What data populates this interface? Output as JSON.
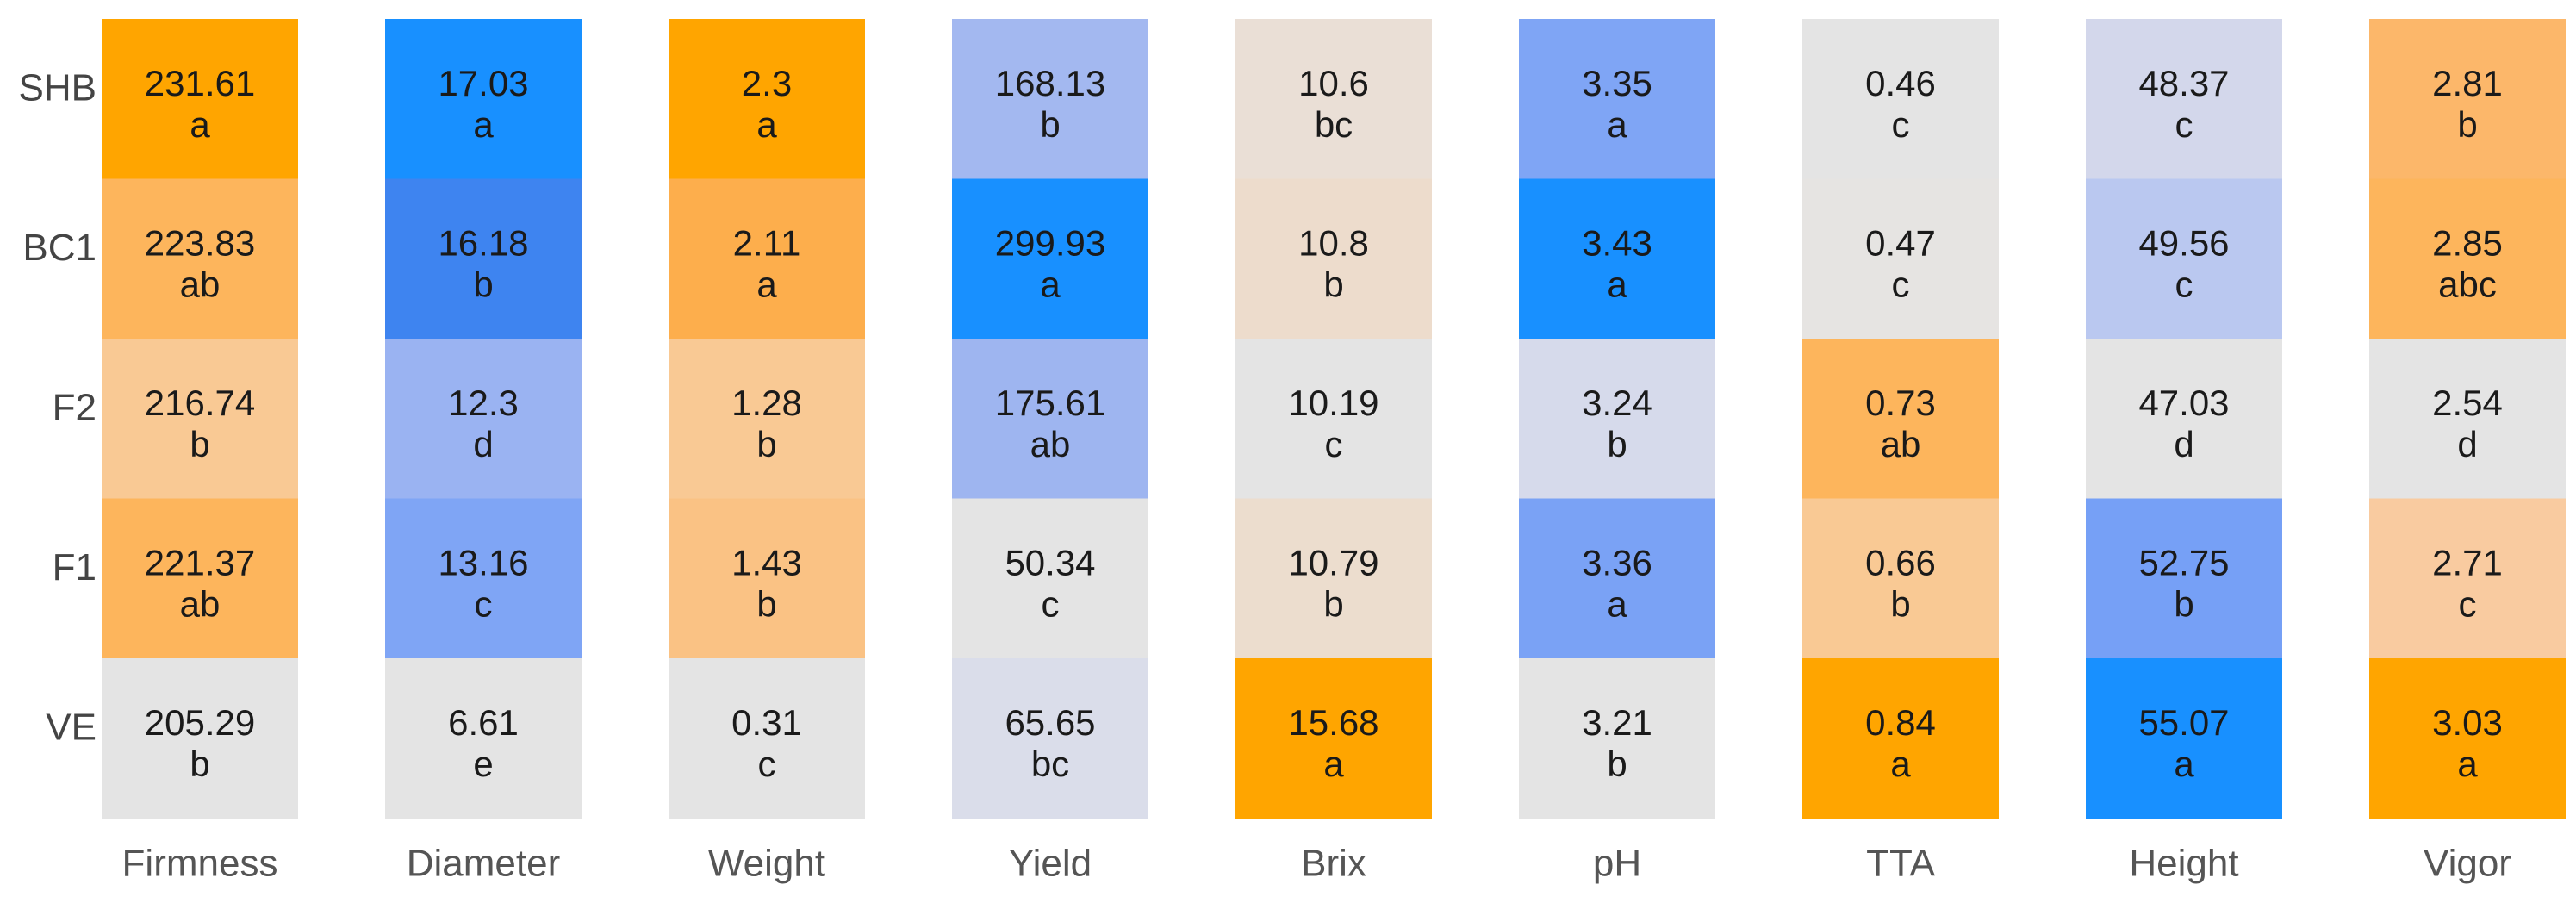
{
  "chart_data": {
    "type": "heatmap",
    "rows": [
      "SHB",
      "BC1",
      "F2",
      "F1",
      "VE"
    ],
    "columns": [
      {
        "name": "Firmness",
        "values": [
          231.61,
          223.83,
          216.74,
          221.37,
          205.29
        ],
        "labels": [
          "231.61",
          "223.83",
          "216.74",
          "221.37",
          "205.29"
        ],
        "letters": [
          "a",
          "ab",
          "b",
          "ab",
          "b"
        ],
        "colors": [
          "#FFA500",
          "#FDB55C",
          "#F9C994",
          "#FDB55C",
          "#E4E4E4"
        ]
      },
      {
        "name": "Diameter",
        "values": [
          17.03,
          16.18,
          12.3,
          13.16,
          6.61
        ],
        "labels": [
          "17.03",
          "16.18",
          "12.3",
          "13.16",
          "6.61"
        ],
        "letters": [
          "a",
          "b",
          "d",
          "c",
          "e"
        ],
        "colors": [
          "#1890FF",
          "#3E84F0",
          "#9AB3F2",
          "#7FA5F5",
          "#E4E4E4"
        ]
      },
      {
        "name": "Weight",
        "values": [
          2.3,
          2.11,
          1.28,
          1.43,
          0.31
        ],
        "labels": [
          "2.3",
          "2.11",
          "1.28",
          "1.43",
          "0.31"
        ],
        "letters": [
          "a",
          "a",
          "b",
          "b",
          "c"
        ],
        "colors": [
          "#FFA500",
          "#FDAE4C",
          "#F9C994",
          "#FAC284",
          "#E4E4E4"
        ]
      },
      {
        "name": "Yield",
        "values": [
          168.13,
          299.93,
          175.61,
          50.34,
          65.65
        ],
        "labels": [
          "168.13",
          "299.93",
          "175.61",
          "50.34",
          "65.65"
        ],
        "letters": [
          "b",
          "a",
          "ab",
          "c",
          "bc"
        ],
        "colors": [
          "#A3B8F0",
          "#1890FF",
          "#9EB5F0",
          "#E4E4E4",
          "#DADDEA"
        ]
      },
      {
        "name": "Brix",
        "values": [
          10.6,
          10.8,
          10.19,
          10.79,
          15.68
        ],
        "labels": [
          "10.6",
          "10.8",
          "10.19",
          "10.79",
          "15.68"
        ],
        "letters": [
          "bc",
          "b",
          "c",
          "b",
          "a"
        ],
        "colors": [
          "#EADFD6",
          "#EDDCCC",
          "#E4E4E4",
          "#ECDDCE",
          "#FFA500"
        ]
      },
      {
        "name": "pH",
        "values": [
          3.35,
          3.43,
          3.24,
          3.36,
          3.21
        ],
        "labels": [
          "3.35",
          "3.43",
          "3.24",
          "3.36",
          "3.21"
        ],
        "letters": [
          "a",
          "a",
          "b",
          "a",
          "b"
        ],
        "colors": [
          "#7FA5F5",
          "#1890FF",
          "#D6DAEB",
          "#7AA2F5",
          "#E4E4E4"
        ]
      },
      {
        "name": "TTA",
        "values": [
          0.46,
          0.47,
          0.73,
          0.66,
          0.84
        ],
        "labels": [
          "0.46",
          "0.47",
          "0.73",
          "0.66",
          "0.84"
        ],
        "letters": [
          "c",
          "c",
          "ab",
          "b",
          "a"
        ],
        "colors": [
          "#E4E4E4",
          "#E6E4E2",
          "#FDB55C",
          "#F9C994",
          "#FFA500"
        ]
      },
      {
        "name": "Height",
        "values": [
          48.37,
          49.56,
          47.03,
          52.75,
          55.07
        ],
        "labels": [
          "48.37",
          "49.56",
          "47.03",
          "52.75",
          "55.07"
        ],
        "letters": [
          "c",
          "c",
          "d",
          "b",
          "a"
        ],
        "colors": [
          "#D3D7EB",
          "#BAC8F0",
          "#E4E4E4",
          "#76A0F6",
          "#1890FF"
        ]
      },
      {
        "name": "Vigor",
        "values": [
          2.81,
          2.85,
          2.54,
          2.71,
          3.03
        ],
        "labels": [
          "2.81",
          "2.85",
          "2.54",
          "2.71",
          "3.03"
        ],
        "letters": [
          "b",
          "abc",
          "d",
          "c",
          "a"
        ],
        "colors": [
          "#FCB76A",
          "#FDB55C",
          "#E4E4E4",
          "#F9CBA0",
          "#FFA500"
        ]
      }
    ],
    "title": "",
    "xlabel": "",
    "ylabel": "",
    "legend": "none",
    "grid": false
  }
}
